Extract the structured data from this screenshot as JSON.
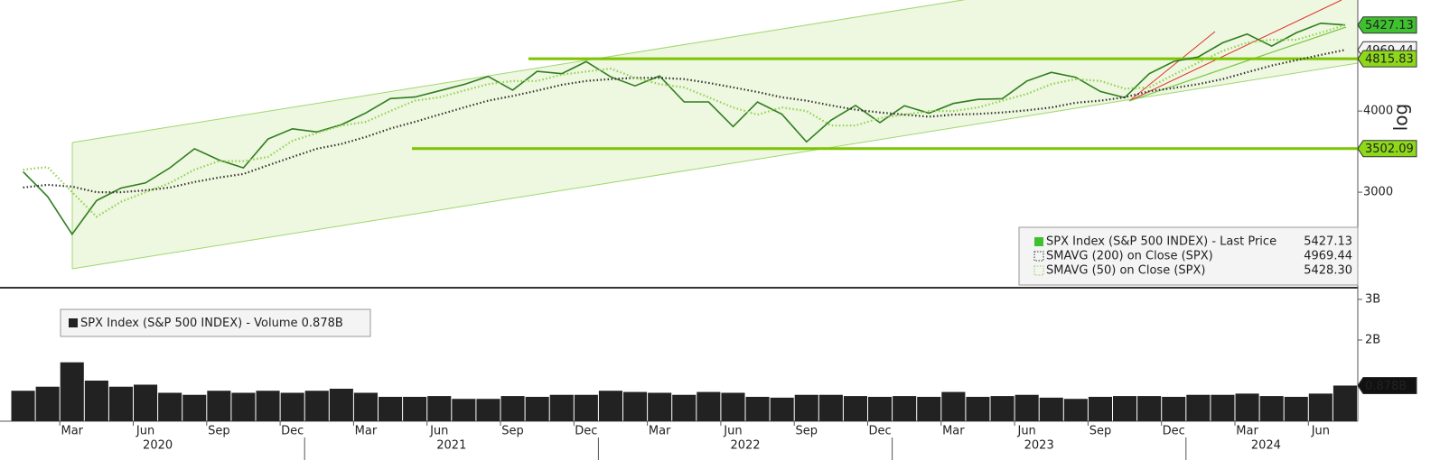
{
  "chart_data": [
    {
      "type": "line",
      "log": true,
      "scale_label": "log",
      "x": [
        "2020-01",
        "2020-02",
        "2020-03",
        "2020-04",
        "2020-05",
        "2020-06",
        "2020-07",
        "2020-08",
        "2020-09",
        "2020-10",
        "2020-11",
        "2020-12",
        "2021-01",
        "2021-02",
        "2021-03",
        "2021-04",
        "2021-05",
        "2021-06",
        "2021-07",
        "2021-08",
        "2021-09",
        "2021-10",
        "2021-11",
        "2021-12",
        "2022-01",
        "2022-02",
        "2022-03",
        "2022-04",
        "2022-05",
        "2022-06",
        "2022-07",
        "2022-08",
        "2022-09",
        "2022-10",
        "2022-11",
        "2022-12",
        "2023-01",
        "2023-02",
        "2023-03",
        "2023-04",
        "2023-05",
        "2023-06",
        "2023-07",
        "2023-08",
        "2023-09",
        "2023-10",
        "2023-11",
        "2023-12",
        "2024-01",
        "2024-02",
        "2024-03",
        "2024-04",
        "2024-05",
        "2024-06",
        "2024-07"
      ],
      "series": [
        {
          "name": "SPX Index (S&P 500 INDEX) - Last Price",
          "color": "#2f7d1f",
          "last": 5427.13,
          "values": [
            3226,
            2954,
            2585,
            2912,
            3044,
            3100,
            3271,
            3500,
            3363,
            3270,
            3622,
            3756,
            3714,
            3811,
            3973,
            4181,
            4204,
            4298,
            4395,
            4523,
            4308,
            4605,
            4567,
            4766,
            4516,
            4374,
            4530,
            4132,
            4132,
            3785,
            4130,
            3955,
            3586,
            3872,
            4080,
            3840,
            4077,
            3970,
            4109,
            4169,
            4180,
            4450,
            4589,
            4508,
            4288,
            4194,
            4568,
            4770,
            4846,
            5096,
            5254,
            5036,
            5278,
            5460,
            5427
          ]
        },
        {
          "name": "SMAVG (200)  on Close (SPX)",
          "color": "#333333",
          "last": 4969.44,
          "values": [
            3050,
            3080,
            3060,
            3000,
            3000,
            3020,
            3050,
            3110,
            3160,
            3200,
            3300,
            3400,
            3500,
            3560,
            3650,
            3760,
            3850,
            3950,
            4050,
            4150,
            4220,
            4300,
            4390,
            4450,
            4480,
            4500,
            4500,
            4480,
            4420,
            4350,
            4280,
            4200,
            4150,
            4080,
            4020,
            3980,
            3950,
            3920,
            3950,
            3960,
            3980,
            4010,
            4050,
            4120,
            4150,
            4200,
            4290,
            4340,
            4400,
            4480,
            4590,
            4700,
            4790,
            4880,
            4969
          ]
        },
        {
          "name": "SMAVG (50)  on Close (SPX)",
          "color": "#8fd14f",
          "last": {
            "value": 5428.3,
            "label": "5428.30"
          },
          "values": [
            3250,
            3280,
            3000,
            2750,
            2900,
            3000,
            3100,
            3250,
            3350,
            3350,
            3400,
            3600,
            3700,
            3800,
            3850,
            4000,
            4150,
            4200,
            4300,
            4400,
            4450,
            4450,
            4550,
            4600,
            4650,
            4500,
            4400,
            4350,
            4200,
            4050,
            3950,
            4050,
            4000,
            3800,
            3800,
            3900,
            3950,
            4000,
            4000,
            4050,
            4150,
            4250,
            4400,
            4480,
            4450,
            4330,
            4350,
            4550,
            4750,
            4950,
            5100,
            5150,
            5150,
            5280,
            5428
          ]
        }
      ],
      "levels": [
        4815.83,
        3502.09
      ],
      "ylim": [
        2145,
        5930
      ],
      "yticks": [
        3000,
        4000
      ],
      "xticks": [
        {
          "value": "2020-03",
          "label": "Mar"
        },
        {
          "value": "2020-06",
          "label": "Jun"
        },
        {
          "value": "2020-09",
          "label": "Sep"
        },
        {
          "value": "2020-12",
          "label": "Dec"
        },
        {
          "value": "2021-03",
          "label": "Mar"
        },
        {
          "value": "2021-06",
          "label": "Jun"
        },
        {
          "value": "2021-09",
          "label": "Sep"
        },
        {
          "value": "2021-12",
          "label": "Dec"
        },
        {
          "value": "2022-03",
          "label": "Mar"
        },
        {
          "value": "2022-06",
          "label": "Jun"
        },
        {
          "value": "2022-09",
          "label": "Sep"
        },
        {
          "value": "2022-12",
          "label": "Dec"
        },
        {
          "value": "2023-03",
          "label": "Mar"
        },
        {
          "value": "2023-06",
          "label": "Jun"
        },
        {
          "value": "2023-09",
          "label": "Sep"
        },
        {
          "value": "2023-12",
          "label": "Dec"
        },
        {
          "value": "2024-03",
          "label": "Mar"
        },
        {
          "value": "2024-06",
          "label": "Jun"
        }
      ],
      "years": [
        2020,
        2021,
        2022,
        2023,
        2024
      ]
    },
    {
      "type": "bar",
      "name": "SPX Index (S&P 500 INDEX) - Volume",
      "color": "#222222",
      "last": {
        "value": 0.878,
        "label": "0.878B"
      },
      "x": [
        "2020-01",
        "2020-02",
        "2020-03",
        "2020-04",
        "2020-05",
        "2020-06",
        "2020-07",
        "2020-08",
        "2020-09",
        "2020-10",
        "2020-11",
        "2020-12",
        "2021-01",
        "2021-02",
        "2021-03",
        "2021-04",
        "2021-05",
        "2021-06",
        "2021-07",
        "2021-08",
        "2021-09",
        "2021-10",
        "2021-11",
        "2021-12",
        "2022-01",
        "2022-02",
        "2022-03",
        "2022-04",
        "2022-05",
        "2022-06",
        "2022-07",
        "2022-08",
        "2022-09",
        "2022-10",
        "2022-11",
        "2022-12",
        "2023-01",
        "2023-02",
        "2023-03",
        "2023-04",
        "2023-05",
        "2023-06",
        "2023-07",
        "2023-08",
        "2023-09",
        "2023-10",
        "2023-11",
        "2023-12",
        "2024-01",
        "2024-02",
        "2024-03",
        "2024-04",
        "2024-05",
        "2024-06",
        "2024-07"
      ],
      "values": [
        0.75,
        0.85,
        1.45,
        1.0,
        0.85,
        0.9,
        0.7,
        0.65,
        0.75,
        0.7,
        0.75,
        0.7,
        0.75,
        0.8,
        0.7,
        0.6,
        0.6,
        0.62,
        0.55,
        0.55,
        0.62,
        0.6,
        0.65,
        0.65,
        0.75,
        0.72,
        0.7,
        0.65,
        0.72,
        0.7,
        0.6,
        0.58,
        0.65,
        0.65,
        0.62,
        0.6,
        0.62,
        0.6,
        0.72,
        0.6,
        0.62,
        0.65,
        0.58,
        0.55,
        0.6,
        0.62,
        0.62,
        0.6,
        0.65,
        0.65,
        0.68,
        0.62,
        0.6,
        0.68,
        0.878
      ],
      "ylim": [
        0,
        3.22
      ],
      "yticks": [
        {
          "value": 2,
          "label": "2B"
        },
        {
          "value": 3,
          "label": "3B"
        }
      ]
    }
  ]
}
